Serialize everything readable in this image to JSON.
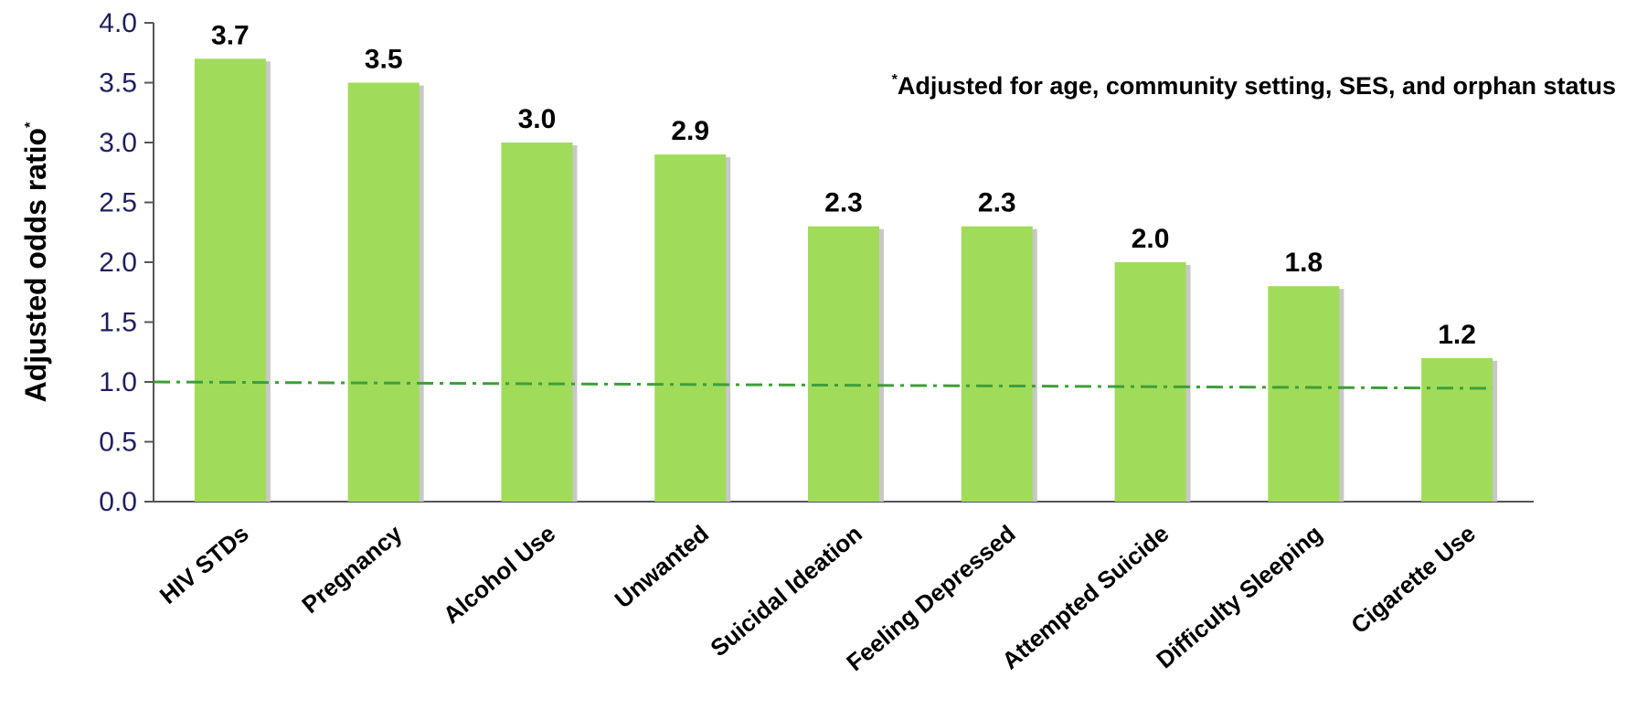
{
  "chart_data": {
    "type": "bar",
    "categories": [
      "HIV STDs",
      "Pregnancy",
      "Alcohol Use",
      "Unwanted",
      "Suicidal Ideation",
      "Feeling Depressed",
      "Attempted Suicide",
      "Difficulty Sleeping",
      "Cigarette Use"
    ],
    "values": [
      3.7,
      3.5,
      3.0,
      2.9,
      2.3,
      2.3,
      2.0,
      1.8,
      1.2
    ],
    "value_labels": [
      "3.7",
      "3.5",
      "3.0",
      "2.9",
      "2.3",
      "2.3",
      "2.0",
      "1.8",
      "1.2"
    ],
    "ylabel": "Adjusted odds ratio",
    "ylabel_superscript": "*",
    "ylim": [
      0,
      4.0
    ],
    "yticks": [
      "0.0",
      "0.5",
      "1.0",
      "1.5",
      "2.0",
      "2.5",
      "3.0",
      "3.5",
      "4.0"
    ],
    "reference_line": {
      "value": 1.0,
      "style": "dash-dot"
    },
    "annotation": {
      "superscript": "*",
      "text": "Adjusted for age, community setting, SES, and orphan status"
    },
    "grid": false,
    "legend": "none",
    "colors": {
      "bar": "#a0dc5a",
      "bar_shadow": "#c8c8c8",
      "reference_line": "#3f9e3a",
      "tick_text": "#1f1f5c",
      "axis": "#555555"
    }
  }
}
